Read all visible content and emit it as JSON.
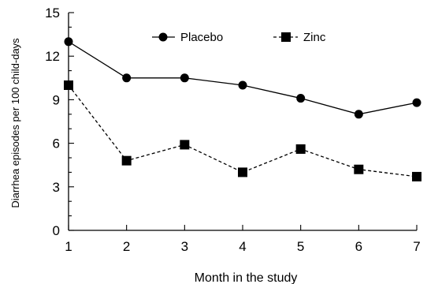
{
  "chart_data": {
    "type": "line",
    "xlabel": "Month in the study",
    "ylabel": "Diarrhea episodes per 100 child-days",
    "xlim": [
      1,
      7
    ],
    "ylim": [
      0,
      15
    ],
    "x_ticks": [
      1,
      2,
      3,
      4,
      5,
      6,
      7
    ],
    "y_ticks": [
      0,
      3,
      6,
      9,
      12,
      15
    ],
    "grid": false,
    "legend_position": "top",
    "x": [
      1,
      2,
      3,
      4,
      5,
      6,
      7
    ],
    "series": [
      {
        "name": "Placebo",
        "values": [
          13.0,
          10.5,
          10.5,
          10.0,
          9.1,
          8.0,
          8.8
        ],
        "marker": "circle",
        "line_style": "solid",
        "color": "#000000"
      },
      {
        "name": "Zinc",
        "values": [
          10.0,
          4.8,
          5.9,
          4.0,
          5.6,
          4.2,
          3.7
        ],
        "marker": "square",
        "line_style": "dashed",
        "color": "#000000"
      }
    ]
  }
}
